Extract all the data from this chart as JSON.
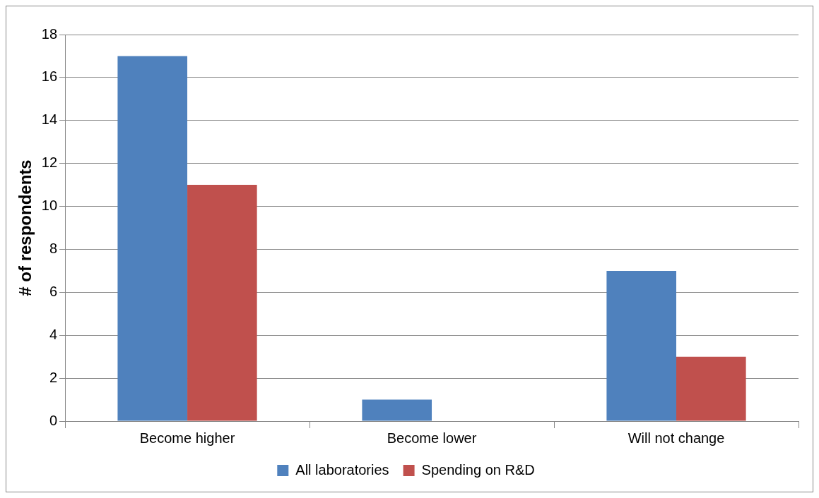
{
  "chart_data": {
    "type": "bar",
    "ylabel": "# of respondents",
    "categories": [
      "Become higher",
      "Become lower",
      "Will not change"
    ],
    "series": [
      {
        "name": "All laboratories",
        "color": "#4f81bd",
        "values": [
          17,
          1,
          7
        ]
      },
      {
        "name": "Spending on R&D",
        "color": "#c0504d",
        "values": [
          11,
          0,
          3
        ]
      }
    ],
    "ylim": [
      0,
      18
    ],
    "yticks": [
      0,
      2,
      4,
      6,
      8,
      10,
      12,
      14,
      16,
      18
    ],
    "grid": "y",
    "legend": "bottom"
  }
}
